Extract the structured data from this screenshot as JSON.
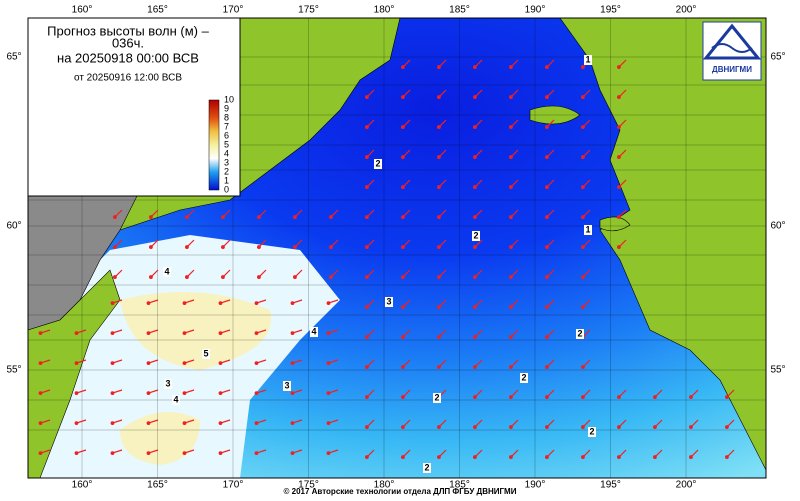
{
  "header": {
    "title": "Прогноз высоты волн (м) –",
    "title_suffix": "036ч.",
    "valid": "на 20250918 00:00 ВСВ",
    "issued": "от 20250916 12:00 ВСВ"
  },
  "colorbar": {
    "labels": [
      10,
      9,
      8,
      7,
      6,
      5,
      4,
      3,
      2,
      1,
      0
    ]
  },
  "lon_labels": [
    "160°",
    "165°",
    "170°",
    "175°",
    "180°",
    "185°",
    "190°",
    "195°",
    "200°"
  ],
  "lat_labels": [
    "65°",
    "60°",
    "55°"
  ],
  "contour_labels": [
    "1",
    "1",
    "2",
    "2",
    "2",
    "2",
    "2",
    "2",
    "2",
    "3",
    "3",
    "4",
    "4",
    "4",
    "5",
    "3"
  ],
  "logo": "ДВНИГМИ",
  "footer": "© 2017 Авторские технологии отдела ДЛП ФГБУ ДВНИГМИ"
}
